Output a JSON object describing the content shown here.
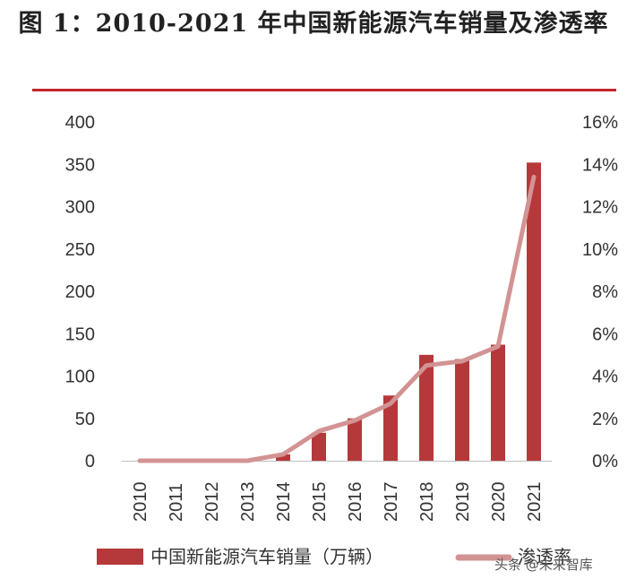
{
  "title": "图 1：2010-2021 年中国新能源汽车销量及渗透率",
  "colors": {
    "bar": "#b5393b",
    "line": "#d39393",
    "rule": "#c0262c"
  },
  "chart_data": {
    "type": "bar",
    "title": "图 1：2010-2021 年中国新能源汽车销量及渗透率",
    "categories": [
      "2010",
      "2011",
      "2012",
      "2013",
      "2014",
      "2015",
      "2016",
      "2017",
      "2018",
      "2019",
      "2020",
      "2021"
    ],
    "series": [
      {
        "name": "中国新能源汽车销量（万辆）",
        "type": "bar",
        "axis": "left",
        "values": [
          0.05,
          0.8,
          1.3,
          1.8,
          7.5,
          33,
          50,
          77,
          125,
          120,
          137,
          352
        ]
      },
      {
        "name": "渗透率",
        "type": "line",
        "axis": "right",
        "values": [
          0.0,
          0.0,
          0.0,
          0.0,
          0.3,
          1.4,
          1.9,
          2.7,
          4.5,
          4.7,
          5.4,
          13.4
        ]
      }
    ],
    "y_left": {
      "min": 0,
      "max": 400,
      "ticks": [
        "0",
        "50",
        "100",
        "150",
        "200",
        "250",
        "300",
        "350",
        "400"
      ]
    },
    "y_right": {
      "min": 0,
      "max": 16,
      "ticks": [
        "0%",
        "2%",
        "4%",
        "6%",
        "8%",
        "10%",
        "12%",
        "14%",
        "16%"
      ]
    },
    "grid": false,
    "legend_position": "bottom"
  },
  "legend": {
    "bar_label": "中国新能源汽车销量（万辆）",
    "line_label": "渗透率"
  },
  "watermark": "头条 @未来智库"
}
